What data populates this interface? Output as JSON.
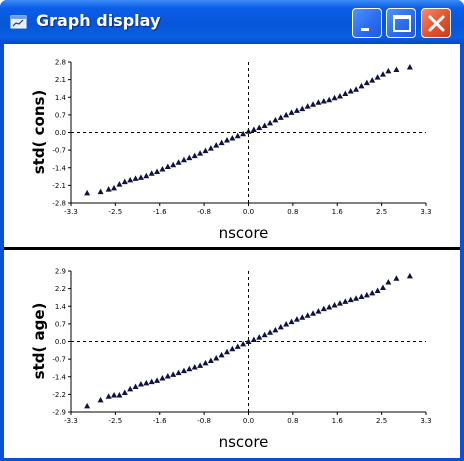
{
  "window": {
    "title": "Graph display",
    "icons": {
      "app": "graph-app-icon",
      "minimize": "minimize-icon",
      "maximize": "maximize-icon",
      "close": "close-icon"
    }
  },
  "colors": {
    "titlebar": "#0a5ee2",
    "close": "#e0532f",
    "marker": "#0f1240"
  },
  "chart_data": [
    {
      "type": "scatter",
      "title": "",
      "xlabel": "nscore",
      "ylabel": "std( cons)",
      "xlim": [
        -3.3,
        3.3
      ],
      "ylim": [
        -2.8,
        2.8
      ],
      "xticks": [
        "-3.3",
        "-2.5",
        "-1.6",
        "-0.8",
        "0.0",
        "0.8",
        "1.6",
        "2.5",
        "3.3"
      ],
      "yticks": [
        "2.8",
        "2.1",
        "1.4",
        "0.7",
        "0.0",
        "-0.7",
        "-1.4",
        "-2.1",
        "-2.8"
      ],
      "reference_lines": {
        "x": 0,
        "y": 0
      },
      "x": [
        -3.0,
        -2.75,
        -2.6,
        -2.5,
        -2.4,
        -2.3,
        -2.2,
        -2.1,
        -2.0,
        -1.9,
        -1.8,
        -1.7,
        -1.6,
        -1.5,
        -1.4,
        -1.3,
        -1.2,
        -1.1,
        -1.0,
        -0.9,
        -0.8,
        -0.7,
        -0.6,
        -0.5,
        -0.4,
        -0.3,
        -0.2,
        -0.1,
        0.0,
        0.1,
        0.2,
        0.3,
        0.4,
        0.5,
        0.6,
        0.7,
        0.8,
        0.9,
        1.0,
        1.1,
        1.2,
        1.3,
        1.4,
        1.5,
        1.6,
        1.7,
        1.8,
        1.9,
        2.0,
        2.1,
        2.2,
        2.3,
        2.4,
        2.5,
        2.6,
        2.75,
        3.0
      ],
      "y": [
        -2.4,
        -2.35,
        -2.25,
        -2.2,
        -2.05,
        -1.95,
        -1.88,
        -1.82,
        -1.78,
        -1.72,
        -1.62,
        -1.55,
        -1.45,
        -1.35,
        -1.28,
        -1.18,
        -1.08,
        -1.0,
        -0.92,
        -0.82,
        -0.72,
        -0.62,
        -0.5,
        -0.4,
        -0.3,
        -0.22,
        -0.13,
        -0.05,
        0.05,
        0.12,
        0.2,
        0.28,
        0.38,
        0.5,
        0.6,
        0.7,
        0.8,
        0.88,
        0.95,
        1.05,
        1.12,
        1.2,
        1.25,
        1.3,
        1.38,
        1.45,
        1.55,
        1.65,
        1.72,
        1.85,
        1.98,
        2.08,
        2.2,
        2.32,
        2.45,
        2.5,
        2.6
      ]
    },
    {
      "type": "scatter",
      "title": "",
      "xlabel": "nscore",
      "ylabel": "std( age)",
      "xlim": [
        -3.3,
        3.3
      ],
      "ylim": [
        -2.9,
        2.9
      ],
      "xticks": [
        "-3.3",
        "-2.5",
        "-1.6",
        "-0.8",
        "0.0",
        "0.8",
        "1.6",
        "2.5",
        "3.3"
      ],
      "yticks": [
        "2.9",
        "2.2",
        "1.4",
        "0.7",
        "0.0",
        "-0.7",
        "-1.4",
        "-2.2",
        "-2.9"
      ],
      "reference_lines": {
        "x": 0,
        "y": 0
      },
      "x": [
        -3.0,
        -2.75,
        -2.6,
        -2.5,
        -2.4,
        -2.3,
        -2.2,
        -2.1,
        -2.0,
        -1.9,
        -1.8,
        -1.7,
        -1.6,
        -1.5,
        -1.4,
        -1.3,
        -1.2,
        -1.1,
        -1.0,
        -0.9,
        -0.8,
        -0.7,
        -0.6,
        -0.5,
        -0.4,
        -0.3,
        -0.2,
        -0.1,
        0.0,
        0.1,
        0.2,
        0.3,
        0.4,
        0.5,
        0.6,
        0.7,
        0.8,
        0.9,
        1.0,
        1.1,
        1.2,
        1.3,
        1.4,
        1.5,
        1.6,
        1.7,
        1.8,
        1.9,
        2.0,
        2.1,
        2.2,
        2.3,
        2.4,
        2.5,
        2.6,
        2.75,
        3.0
      ],
      "y": [
        -2.65,
        -2.4,
        -2.25,
        -2.2,
        -2.2,
        -2.1,
        -1.95,
        -1.85,
        -1.75,
        -1.7,
        -1.65,
        -1.6,
        -1.5,
        -1.42,
        -1.35,
        -1.28,
        -1.2,
        -1.12,
        -1.05,
        -0.98,
        -0.88,
        -0.78,
        -0.68,
        -0.55,
        -0.42,
        -0.3,
        -0.2,
        -0.1,
        0.0,
        0.08,
        0.18,
        0.28,
        0.38,
        0.48,
        0.6,
        0.72,
        0.82,
        0.92,
        1.0,
        1.08,
        1.16,
        1.25,
        1.35,
        1.42,
        1.5,
        1.58,
        1.65,
        1.72,
        1.78,
        1.85,
        1.92,
        2.0,
        2.1,
        2.22,
        2.45,
        2.6,
        2.7
      ]
    }
  ]
}
